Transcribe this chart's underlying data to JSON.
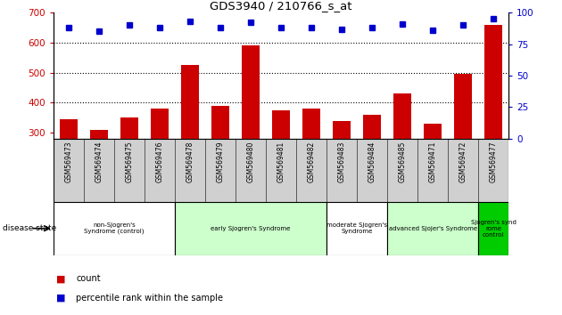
{
  "title": "GDS3940 / 210766_s_at",
  "samples": [
    "GSM569473",
    "GSM569474",
    "GSM569475",
    "GSM569476",
    "GSM569478",
    "GSM569479",
    "GSM569480",
    "GSM569481",
    "GSM569482",
    "GSM569483",
    "GSM569484",
    "GSM569485",
    "GSM569471",
    "GSM569472",
    "GSM569477"
  ],
  "counts": [
    345,
    308,
    350,
    380,
    525,
    390,
    590,
    375,
    380,
    340,
    360,
    430,
    330,
    495,
    660
  ],
  "percentiles": [
    88,
    85,
    90,
    88,
    93,
    88,
    92,
    88,
    88,
    87,
    88,
    91,
    86,
    90,
    95
  ],
  "ylim_left": [
    280,
    700
  ],
  "ylim_right": [
    0,
    100
  ],
  "yticks_left": [
    300,
    400,
    500,
    600,
    700
  ],
  "yticks_right": [
    0,
    25,
    50,
    75,
    100
  ],
  "bar_color": "#cc0000",
  "dot_color": "#0000cc",
  "groups": [
    {
      "label": "non-Sjogren's\nSyndrome (control)",
      "start": 0,
      "end": 4,
      "color": "#ffffff"
    },
    {
      "label": "early Sjogren's Syndrome",
      "start": 4,
      "end": 9,
      "color": "#ccffcc"
    },
    {
      "label": "moderate Sjogren's\nSyndrome",
      "start": 9,
      "end": 11,
      "color": "#ffffff"
    },
    {
      "label": "advanced Sjojer's Syndrome",
      "start": 11,
      "end": 14,
      "color": "#ccffcc"
    },
    {
      "label": "Sjogren's synd\nrome\ncontrol",
      "start": 14,
      "end": 15,
      "color": "#00cc00"
    }
  ],
  "grid_color": "black",
  "tick_color_left": "#cc0000",
  "tick_color_right": "#0000cc",
  "bg_color": "#ffffff"
}
